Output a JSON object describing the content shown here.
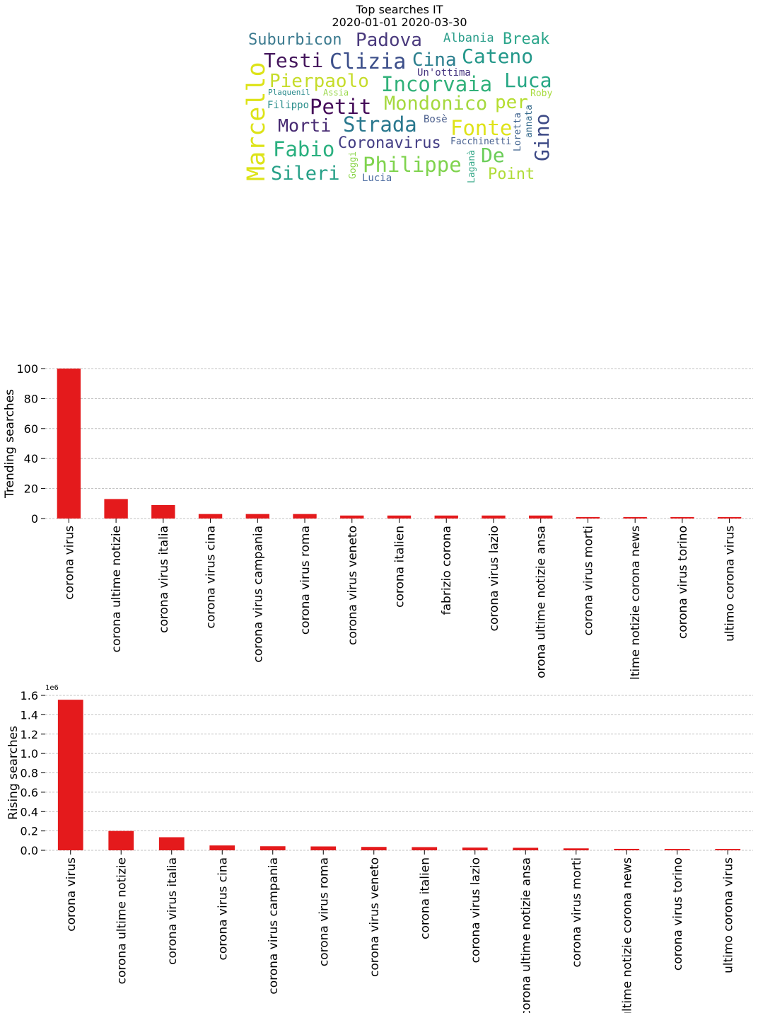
{
  "wordcloud": {
    "title_line1": "Top searches IT",
    "title_line2": "2020-01-01 2020-03-30",
    "words": [
      {
        "text": "Suburbicon",
        "color": "#3b7a8f"
      },
      {
        "text": "Padova",
        "color": "#4a3a7d"
      },
      {
        "text": "Albania",
        "color": "#2a9d8a"
      },
      {
        "text": "Break",
        "color": "#2aa58a"
      },
      {
        "text": "Testi",
        "color": "#45175d"
      },
      {
        "text": "Clizia",
        "color": "#3c4f8a"
      },
      {
        "text": "Cina",
        "color": "#2c7f8e"
      },
      {
        "text": "Cateno",
        "color": "#24988a"
      },
      {
        "text": "Pierpaolo",
        "color": "#c6dc2a"
      },
      {
        "text": "Un'ottima",
        "color": "#45337f"
      },
      {
        "text": "Luca",
        "color": "#27a785"
      },
      {
        "text": "Incorvaia",
        "color": "#31b17a"
      },
      {
        "text": "Marcello",
        "color": "#dde318"
      },
      {
        "text": "Plaquenil",
        "color": "#2a8a8c"
      },
      {
        "text": "Assia",
        "color": "#9ad84a"
      },
      {
        "text": "Roby",
        "color": "#a8db3e"
      },
      {
        "text": "Filippo",
        "color": "#2a8e8b"
      },
      {
        "text": "Petit",
        "color": "#440a58"
      },
      {
        "text": "Mondonico",
        "color": "#a5d93f"
      },
      {
        "text": "per",
        "color": "#b5dd2f"
      },
      {
        "text": "Loretta",
        "color": "#3b5f8c"
      },
      {
        "text": "annata",
        "color": "#3a6d8e"
      },
      {
        "text": "Gino",
        "color": "#3d4a86"
      },
      {
        "text": "Morti",
        "color": "#472a72"
      },
      {
        "text": "Strada",
        "color": "#2a788e"
      },
      {
        "text": "Bosè",
        "color": "#4a5e8c"
      },
      {
        "text": "Fonte",
        "color": "#dfe319"
      },
      {
        "text": "Fabio",
        "color": "#2ab07f"
      },
      {
        "text": "Coronavirus",
        "color": "#433d84"
      },
      {
        "text": "Facchinetti",
        "color": "#4a6291"
      },
      {
        "text": "De",
        "color": "#6ccd5a"
      },
      {
        "text": "Sileri",
        "color": "#26a087"
      },
      {
        "text": "Goggi",
        "color": "#8ad548"
      },
      {
        "text": "Philippe",
        "color": "#7fd34e"
      },
      {
        "text": "Laganà",
        "color": "#38a98a"
      },
      {
        "text": "Point",
        "color": "#b0dc38"
      },
      {
        "text": "Lucia",
        "color": "#4a6aa0"
      }
    ]
  },
  "chart1": {
    "bar_color": "#e41a1c",
    "ylabel": "Trending searches",
    "ylim": [
      0,
      100
    ],
    "yticks": [
      "0",
      "20",
      "40",
      "60",
      "80",
      "100"
    ],
    "offset_label": ""
  },
  "chart2": {
    "bar_color": "#e41a1c",
    "ylabel": "Rising searches",
    "ylim": [
      0,
      1.6
    ],
    "yticks": [
      "0.0",
      "0.2",
      "0.4",
      "0.6",
      "0.8",
      "1.0",
      "1.2",
      "1.4",
      "1.6"
    ],
    "offset_label": "1e6"
  },
  "chart_data": [
    {
      "type": "bar",
      "ylabel": "Trending searches",
      "categories": [
        "corona virus",
        "corona ultime notizie",
        "corona virus italia",
        "corona virus cina",
        "corona virus campania",
        "corona virus roma",
        "corona virus veneto",
        "corona italien",
        "fabrizio corona",
        "corona virus lazio",
        "corona ultime notizie ansa",
        "corona virus morti",
        "ultime notizie corona news",
        "corona virus torino",
        "ultimo corona virus"
      ],
      "values": [
        100,
        13,
        9,
        3,
        3,
        3,
        2,
        2,
        2,
        2,
        2,
        1,
        1,
        1,
        1
      ],
      "ylim": [
        0,
        100
      ],
      "grid": true
    },
    {
      "type": "bar",
      "ylabel": "Rising searches",
      "categories": [
        "corona virus",
        "corona ultime notizie",
        "corona virus italia",
        "corona virus cina",
        "corona virus campania",
        "corona virus roma",
        "corona virus veneto",
        "corona italien",
        "corona virus lazio",
        "corona ultime notizie ansa",
        "corona virus morti",
        "ultime notizie corona news",
        "corona virus torino",
        "ultimo corona virus"
      ],
      "values": [
        1555000,
        200000,
        135000,
        50000,
        42000,
        40000,
        35000,
        33000,
        28000,
        26000,
        20000,
        15000,
        14000,
        14000
      ],
      "ylim": [
        0,
        1600000
      ],
      "grid": true
    }
  ]
}
